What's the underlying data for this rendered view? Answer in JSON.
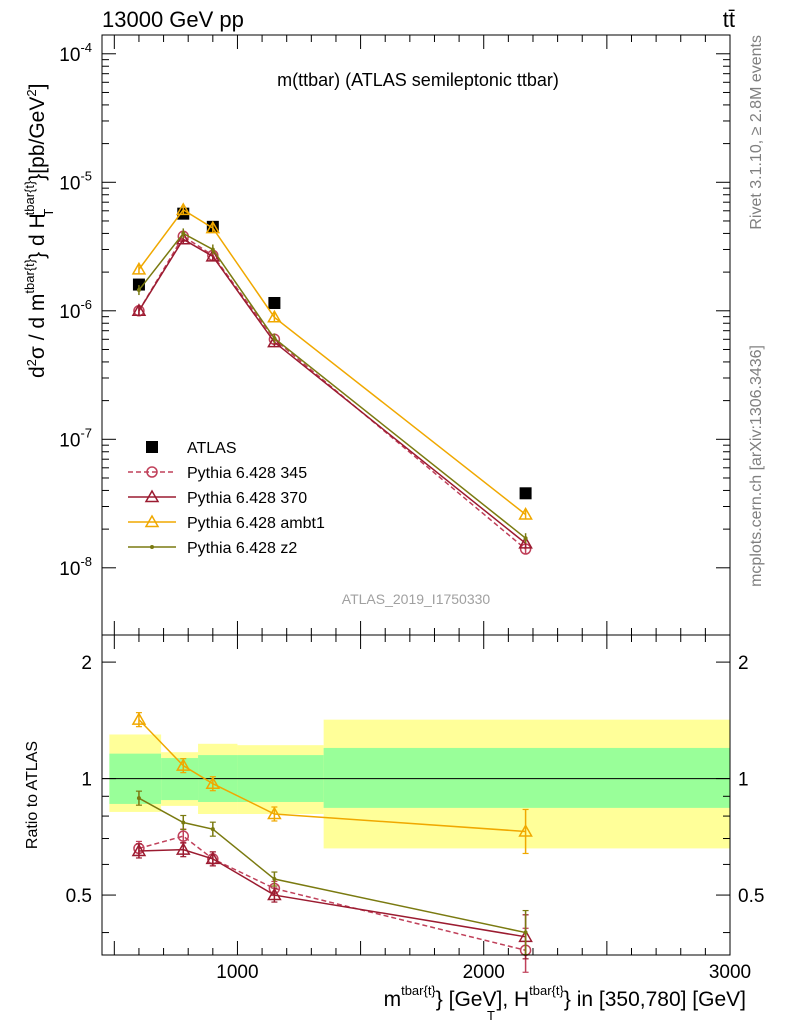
{
  "header": {
    "beam": "13000 GeV pp",
    "process": "tt̄",
    "side_top": "Rivet 3.1.10, ≥ 2.8M events",
    "side_bottom": "mcplots.cern.ch [arXiv:1306.3436]"
  },
  "chart_data": [
    {
      "type": "scatter",
      "title": "m(ttbar) (ATLAS semileptonic ttbar)",
      "watermark": "ATLAS_2019_I1750330",
      "ylabel": "d²σ / d m^tbar{t}} d H_T^tbar{t}}[pb/GeV²]",
      "xlim": [
        450,
        3000
      ],
      "ylim": [
        3e-09,
        0.00014
      ],
      "yscale": "log",
      "ytick_labels": [
        "10^-8",
        "10^-7",
        "10^-6",
        "10^-5",
        "10^-4"
      ],
      "legend_position": "lower-left",
      "series": [
        {
          "name": "ATLAS",
          "color": "#000000",
          "marker": "square",
          "style": "none",
          "x": [
            600,
            780,
            900,
            1150,
            2170
          ],
          "y": [
            1.6e-06,
            5.7e-06,
            4.5e-06,
            1.15e-06,
            3.8e-08
          ]
        },
        {
          "name": "Pythia 6.428 345",
          "color": "#c0405a",
          "marker": "circle",
          "style": "dashed",
          "x": [
            600,
            780,
            900,
            1150,
            2170
          ],
          "y": [
            1e-06,
            3.8e-06,
            2.7e-06,
            6e-07,
            1.4e-08
          ]
        },
        {
          "name": "Pythia 6.428 370",
          "color": "#9b1b30",
          "marker": "triangle",
          "style": "solid",
          "x": [
            600,
            780,
            900,
            1150,
            2170
          ],
          "y": [
            1e-06,
            3.6e-06,
            2.65e-06,
            5.7e-07,
            1.55e-08
          ]
        },
        {
          "name": "Pythia 6.428 ambt1",
          "color": "#f0a800",
          "marker": "triangle",
          "style": "solid",
          "x": [
            600,
            780,
            900,
            1150,
            2170
          ],
          "y": [
            2.1e-06,
            6.1e-06,
            4.4e-06,
            8.9e-07,
            2.6e-08
          ]
        },
        {
          "name": "Pythia 6.428 z2",
          "color": "#7a7a10",
          "marker": "dot",
          "style": "solid",
          "x": [
            600,
            780,
            900,
            1150,
            2170
          ],
          "y": [
            1.45e-06,
            4e-06,
            3e-06,
            6.1e-07,
            1.7e-08
          ]
        }
      ]
    },
    {
      "type": "scatter",
      "xlabel": "m^tbar{t}} [GeV], H_T^tbar{t}} in [350,780] [GeV]",
      "ylabel": "Ratio to ATLAS",
      "xlim": [
        450,
        3000
      ],
      "ylim": [
        0.35,
        2.35
      ],
      "yscale": "log",
      "ytick_labels": [
        "0.5",
        "1",
        "2"
      ],
      "xtick_labels": [
        "1000",
        "2000",
        "3000"
      ],
      "bands": [
        {
          "x0": 480,
          "x1": 690,
          "inner": [
            0.86,
            1.16
          ],
          "outer": [
            0.82,
            1.3
          ]
        },
        {
          "x0": 690,
          "x1": 840,
          "inner": [
            0.88,
            1.13
          ],
          "outer": [
            0.85,
            1.17
          ]
        },
        {
          "x0": 840,
          "x1": 1000,
          "inner": [
            0.87,
            1.15
          ],
          "outer": [
            0.81,
            1.23
          ]
        },
        {
          "x0": 1000,
          "x1": 1350,
          "inner": [
            0.87,
            1.15
          ],
          "outer": [
            0.81,
            1.22
          ]
        },
        {
          "x0": 1350,
          "x1": 3000,
          "inner": [
            0.84,
            1.2
          ],
          "outer": [
            0.66,
            1.42
          ]
        }
      ],
      "series": [
        {
          "name": "Pythia 6.428 345",
          "x": [
            600,
            780,
            900,
            1150,
            2170
          ],
          "y": [
            0.66,
            0.71,
            0.62,
            0.52,
            0.36
          ]
        },
        {
          "name": "Pythia 6.428 370",
          "x": [
            600,
            780,
            900,
            1150,
            2170
          ],
          "y": [
            0.65,
            0.655,
            0.62,
            0.5,
            0.39
          ]
        },
        {
          "name": "Pythia 6.428 ambt1",
          "x": [
            600,
            780,
            900,
            1150,
            2170
          ],
          "y": [
            1.42,
            1.08,
            0.97,
            0.81,
            0.73
          ]
        },
        {
          "name": "Pythia 6.428 z2",
          "x": [
            600,
            780,
            900,
            1150,
            2170
          ],
          "y": [
            0.89,
            0.77,
            0.74,
            0.55,
            0.4
          ]
        }
      ]
    }
  ]
}
